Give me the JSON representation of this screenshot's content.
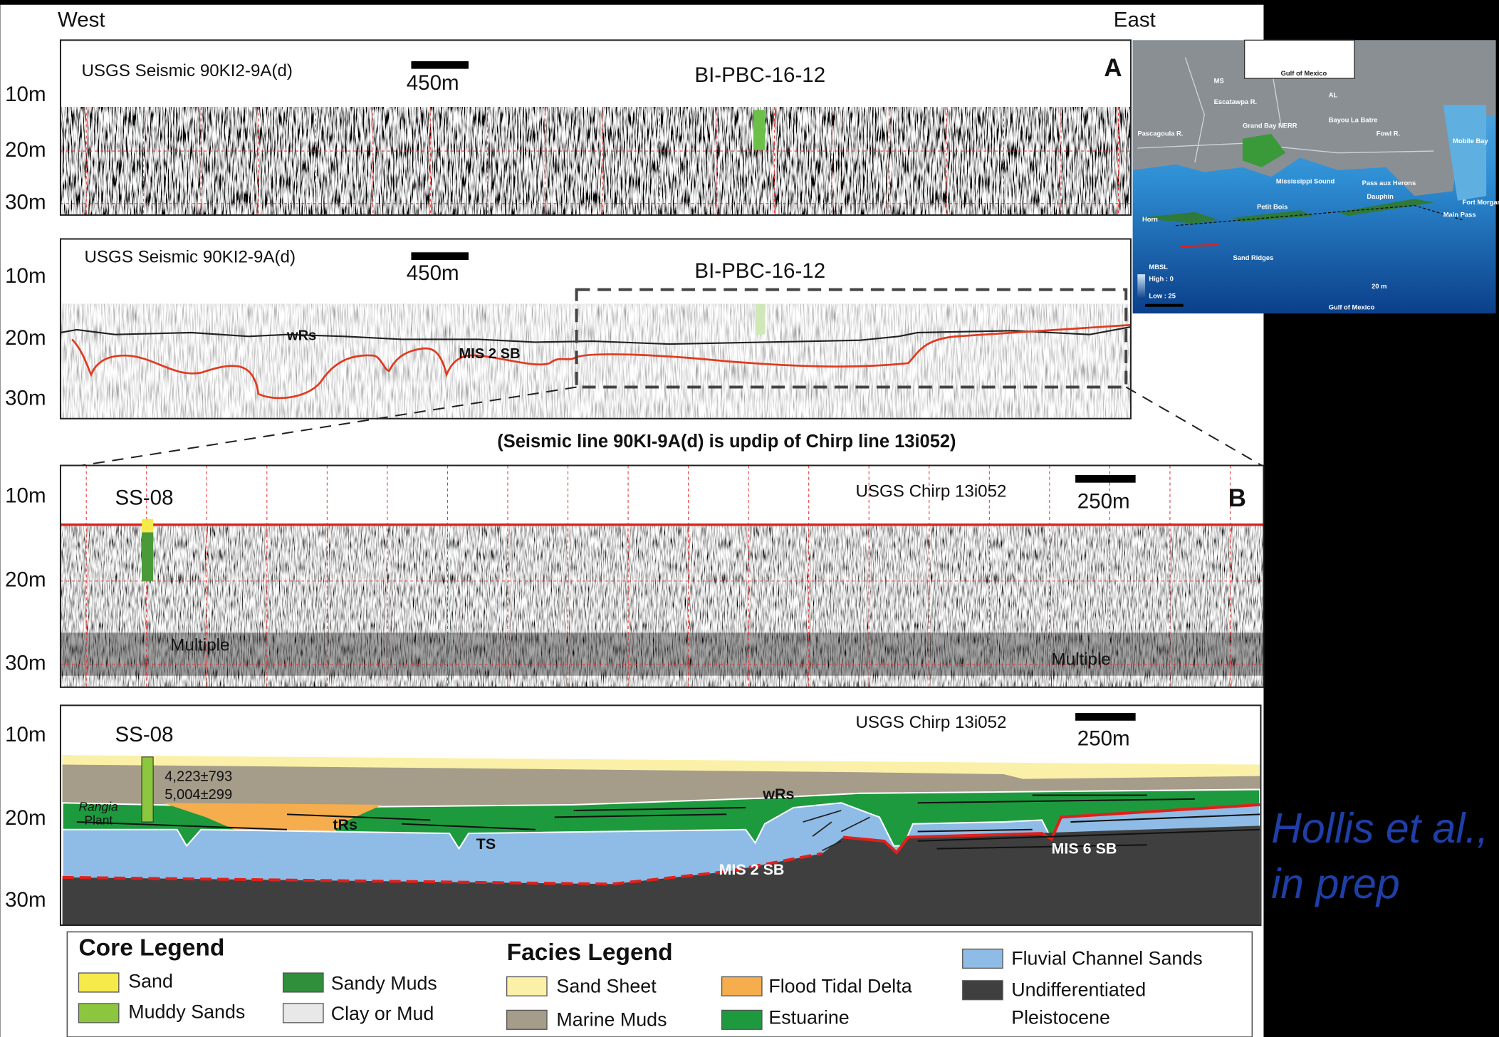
{
  "header": {
    "west": "West",
    "east": "East"
  },
  "panel_a_top": {
    "line": "USGS Seismic 90KI2-9A(d)",
    "scale": "450m",
    "core": "BI-PBC-16-12",
    "panel": "A",
    "depths": [
      "10m",
      "20m",
      "30m"
    ]
  },
  "panel_a_bottom": {
    "line": "USGS Seismic 90KI2-9A(d)",
    "scale": "450m",
    "core": "BI-PBC-16-12",
    "depths": [
      "10m",
      "20m",
      "30m"
    ],
    "horizons": [
      "wRs",
      "MIS 2 SB"
    ]
  },
  "caption": "(Seismic line 90KI-9A(d) is updip of Chirp line 13i052)",
  "panel_b": {
    "core": "SS-08",
    "line": "USGS Chirp 13i052",
    "scale": "250m",
    "panel": "B",
    "depths": [
      "10m",
      "20m",
      "30m"
    ],
    "annotations": [
      "Multiple",
      "Multiple"
    ]
  },
  "panel_c": {
    "core": "SS-08",
    "line": "USGS Chirp 13i052",
    "scale": "250m",
    "depths": [
      "10m",
      "20m",
      "30m"
    ],
    "ages": [
      "4,223±793",
      "5,004±299"
    ],
    "labels": [
      "Rangia",
      "Plant",
      "wRs",
      "tRs",
      "TS",
      "MIS 2 SB",
      "MIS 6 SB"
    ]
  },
  "core_legend": {
    "title": "Core Legend",
    "items": [
      "Sand",
      "Muddy Sands",
      "Sandy Muds",
      "Clay or Mud"
    ]
  },
  "facies_legend": {
    "title": "Facies Legend",
    "items": [
      {
        "lines": [
          "Sand Sheet"
        ]
      },
      {
        "lines": [
          "Flood Tidal Delta"
        ]
      },
      {
        "lines": [
          "Marine Muds"
        ]
      },
      {
        "lines": [
          "Estuarine"
        ]
      },
      {
        "lines": [
          "Fluvial Channel Sands"
        ]
      },
      {
        "lines": [
          "Undifferentiated",
          "Pleistocene"
        ]
      }
    ]
  },
  "citation": [
    "Hollis et al.,",
    "in prep"
  ],
  "map": {
    "labels": [
      "MS",
      "AL",
      "Gulf of Mexico",
      "Escatawpa R.",
      "Pascagoula R.",
      "Grand Bay NERR",
      "Bayou La Batre",
      "Fowl R.",
      "Mobile Bay",
      "Mississippi Sound",
      "Pass aux Herons",
      "Horn",
      "Petit Bois",
      "Dauphin",
      "Fort Morgan",
      "Main Pass",
      "Sand Ridges",
      "MBSL",
      "High : 0",
      "Low : 25",
      "Gulf of Mexico",
      "20 m"
    ]
  }
}
